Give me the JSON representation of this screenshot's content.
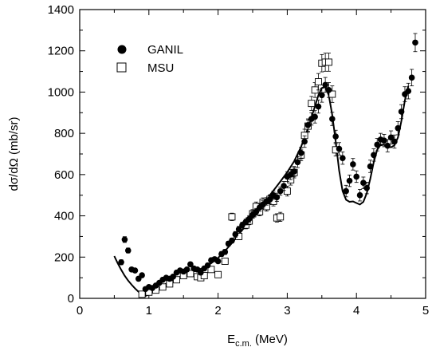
{
  "chart_data": {
    "type": "scatter",
    "xlabel_main": "E",
    "xlabel_sub": "c.m.",
    "xlabel_unit": " (MeV)",
    "ylabel": "dσ/dΩ (mb/sr)",
    "xlim": [
      0,
      5
    ],
    "ylim": [
      0,
      1400
    ],
    "xticks": [
      0,
      1,
      2,
      3,
      4,
      5
    ],
    "yticks": [
      0,
      200,
      400,
      600,
      800,
      1000,
      1200,
      1400
    ],
    "legend": {
      "placement": "top-left",
      "entries": [
        {
          "label": "GANIL",
          "marker": "filled-circle"
        },
        {
          "label": "MSU",
          "marker": "open-square"
        }
      ]
    },
    "series": [
      {
        "name": "GANIL",
        "marker": "filled-circle",
        "points": [
          [
            0.6,
            175,
            12
          ],
          [
            0.65,
            285,
            14
          ],
          [
            0.7,
            232,
            12
          ],
          [
            0.75,
            140,
            10
          ],
          [
            0.8,
            135,
            10
          ],
          [
            0.85,
            95,
            10
          ],
          [
            0.9,
            112,
            10
          ],
          [
            0.95,
            45,
            8
          ],
          [
            1.0,
            55,
            8
          ],
          [
            1.05,
            50,
            8
          ],
          [
            1.1,
            62,
            8
          ],
          [
            1.15,
            75,
            8
          ],
          [
            1.2,
            90,
            8
          ],
          [
            1.25,
            100,
            8
          ],
          [
            1.3,
            95,
            8
          ],
          [
            1.35,
            105,
            8
          ],
          [
            1.4,
            125,
            8
          ],
          [
            1.45,
            135,
            8
          ],
          [
            1.5,
            130,
            8
          ],
          [
            1.55,
            140,
            10
          ],
          [
            1.6,
            165,
            10
          ],
          [
            1.65,
            145,
            10
          ],
          [
            1.7,
            140,
            10
          ],
          [
            1.75,
            125,
            10
          ],
          [
            1.8,
            145,
            10
          ],
          [
            1.85,
            160,
            10
          ],
          [
            1.9,
            185,
            10
          ],
          [
            1.95,
            190,
            10
          ],
          [
            2.0,
            180,
            10
          ],
          [
            2.05,
            215,
            12
          ],
          [
            2.1,
            225,
            12
          ],
          [
            2.15,
            265,
            12
          ],
          [
            2.2,
            280,
            12
          ],
          [
            2.25,
            310,
            14
          ],
          [
            2.3,
            335,
            14
          ],
          [
            2.35,
            355,
            14
          ],
          [
            2.4,
            370,
            14
          ],
          [
            2.45,
            385,
            16
          ],
          [
            2.5,
            405,
            16
          ],
          [
            2.55,
            420,
            16
          ],
          [
            2.6,
            440,
            18
          ],
          [
            2.65,
            455,
            18
          ],
          [
            2.7,
            470,
            18
          ],
          [
            2.75,
            480,
            20
          ],
          [
            2.8,
            500,
            20
          ],
          [
            2.85,
            490,
            20
          ],
          [
            2.9,
            520,
            20
          ],
          [
            2.95,
            545,
            22
          ],
          [
            3.0,
            590,
            24
          ],
          [
            3.05,
            600,
            24
          ],
          [
            3.1,
            615,
            24
          ],
          [
            3.15,
            660,
            26
          ],
          [
            3.2,
            705,
            28
          ],
          [
            3.25,
            760,
            28
          ],
          [
            3.3,
            840,
            30
          ],
          [
            3.35,
            870,
            30
          ],
          [
            3.4,
            880,
            30
          ],
          [
            3.45,
            930,
            32
          ],
          [
            3.5,
            985,
            34
          ],
          [
            3.55,
            1035,
            36
          ],
          [
            3.6,
            1010,
            36
          ],
          [
            3.65,
            870,
            32
          ],
          [
            3.7,
            785,
            30
          ],
          [
            3.75,
            725,
            30
          ],
          [
            3.8,
            680,
            30
          ],
          [
            3.85,
            520,
            28
          ],
          [
            3.9,
            570,
            28
          ],
          [
            3.95,
            650,
            28
          ],
          [
            4.0,
            590,
            28
          ],
          [
            4.05,
            500,
            28
          ],
          [
            4.1,
            560,
            28
          ],
          [
            4.15,
            535,
            28
          ],
          [
            4.2,
            640,
            30
          ],
          [
            4.25,
            695,
            30
          ],
          [
            4.3,
            745,
            30
          ],
          [
            4.35,
            770,
            30
          ],
          [
            4.4,
            765,
            30
          ],
          [
            4.45,
            740,
            30
          ],
          [
            4.5,
            780,
            32
          ],
          [
            4.55,
            760,
            32
          ],
          [
            4.6,
            825,
            32
          ],
          [
            4.65,
            905,
            34
          ],
          [
            4.7,
            990,
            36
          ],
          [
            4.75,
            1005,
            38
          ],
          [
            4.8,
            1070,
            40
          ],
          [
            4.85,
            1240,
            44
          ]
        ]
      },
      {
        "name": "MSU",
        "marker": "open-square",
        "points": [
          [
            0.9,
            20,
            10
          ],
          [
            1.0,
            30,
            10
          ],
          [
            1.1,
            40,
            10
          ],
          [
            1.2,
            55,
            10
          ],
          [
            1.3,
            70,
            10
          ],
          [
            1.4,
            90,
            12
          ],
          [
            1.5,
            110,
            12
          ],
          [
            1.6,
            120,
            12
          ],
          [
            1.7,
            105,
            12
          ],
          [
            1.75,
            100,
            12
          ],
          [
            1.8,
            110,
            12
          ],
          [
            1.9,
            140,
            12
          ],
          [
            2.0,
            115,
            12
          ],
          [
            2.1,
            180,
            14
          ],
          [
            2.2,
            395,
            18
          ],
          [
            2.3,
            300,
            16
          ],
          [
            2.4,
            355,
            18
          ],
          [
            2.45,
            375,
            18
          ],
          [
            2.5,
            410,
            20
          ],
          [
            2.55,
            445,
            22
          ],
          [
            2.6,
            420,
            20
          ],
          [
            2.65,
            465,
            22
          ],
          [
            2.7,
            445,
            22
          ],
          [
            2.75,
            480,
            22
          ],
          [
            2.8,
            470,
            22
          ],
          [
            2.85,
            390,
            20
          ],
          [
            2.9,
            395,
            22
          ],
          [
            3.0,
            520,
            24
          ],
          [
            3.05,
            575,
            26
          ],
          [
            3.1,
            610,
            26
          ],
          [
            3.2,
            695,
            28
          ],
          [
            3.25,
            790,
            30
          ],
          [
            3.3,
            835,
            30
          ],
          [
            3.35,
            945,
            34
          ],
          [
            3.4,
            1010,
            36
          ],
          [
            3.45,
            1050,
            40
          ],
          [
            3.5,
            1140,
            42
          ],
          [
            3.55,
            1145,
            44
          ],
          [
            3.6,
            1145,
            44
          ],
          [
            3.65,
            990,
            40
          ],
          [
            3.7,
            720,
            30
          ]
        ]
      },
      {
        "name": "",
        "type": "line",
        "points": [
          [
            0.5,
            205
          ],
          [
            0.55,
            170
          ],
          [
            0.6,
            138
          ],
          [
            0.65,
            110
          ],
          [
            0.7,
            86
          ],
          [
            0.75,
            66
          ],
          [
            0.8,
            48
          ],
          [
            0.85,
            32
          ],
          [
            0.9,
            18
          ],
          [
            0.95,
            12
          ],
          [
            1.0,
            18
          ],
          [
            1.05,
            30
          ],
          [
            1.1,
            42
          ],
          [
            1.2,
            62
          ],
          [
            1.3,
            80
          ],
          [
            1.4,
            96
          ],
          [
            1.5,
            112
          ],
          [
            1.6,
            125
          ],
          [
            1.7,
            136
          ],
          [
            1.8,
            150
          ],
          [
            1.9,
            170
          ],
          [
            2.0,
            196
          ],
          [
            2.1,
            230
          ],
          [
            2.2,
            268
          ],
          [
            2.3,
            310
          ],
          [
            2.4,
            352
          ],
          [
            2.5,
            395
          ],
          [
            2.6,
            438
          ],
          [
            2.7,
            480
          ],
          [
            2.8,
            522
          ],
          [
            2.9,
            566
          ],
          [
            3.0,
            612
          ],
          [
            3.1,
            665
          ],
          [
            3.2,
            735
          ],
          [
            3.3,
            825
          ],
          [
            3.4,
            930
          ],
          [
            3.45,
            985
          ],
          [
            3.5,
            1020
          ],
          [
            3.55,
            1025
          ],
          [
            3.6,
            985
          ],
          [
            3.65,
            890
          ],
          [
            3.7,
            760
          ],
          [
            3.75,
            620
          ],
          [
            3.8,
            520
          ],
          [
            3.85,
            478
          ],
          [
            3.9,
            468
          ],
          [
            3.95,
            470
          ],
          [
            4.0,
            462
          ],
          [
            4.05,
            455
          ],
          [
            4.1,
            468
          ],
          [
            4.15,
            510
          ],
          [
            4.2,
            580
          ],
          [
            4.25,
            660
          ],
          [
            4.3,
            720
          ],
          [
            4.35,
            745
          ],
          [
            4.4,
            745
          ],
          [
            4.45,
            738
          ],
          [
            4.5,
            732
          ],
          [
            4.55,
            742
          ],
          [
            4.6,
            780
          ],
          [
            4.65,
            860
          ],
          [
            4.7,
            960
          ],
          [
            4.75,
            1030
          ]
        ]
      }
    ]
  }
}
